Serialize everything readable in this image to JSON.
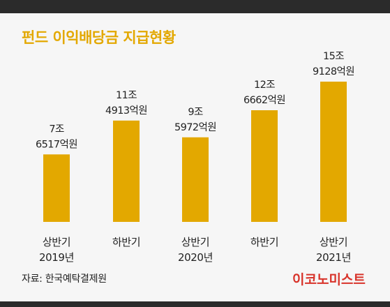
{
  "header": {
    "title": "펀드 이익배당금 지급현황"
  },
  "chart_data": {
    "type": "bar",
    "title": "펀드 이익배당금 지급현황",
    "categories": [
      [
        "상반기",
        "2019년"
      ],
      [
        "하반기"
      ],
      [
        "상반기",
        "2020년"
      ],
      [
        "하반기"
      ],
      [
        "상반기",
        "2021년"
      ]
    ],
    "values": [
      76517,
      114913,
      95972,
      126662,
      159128
    ],
    "value_labels": [
      [
        "7조",
        "6517억원"
      ],
      [
        "11조",
        "4913억원"
      ],
      [
        "9조",
        "5972억원"
      ],
      [
        "12조",
        "6662억원"
      ],
      [
        "15조",
        "9128억원"
      ]
    ],
    "unit": "억원",
    "bar_color": "#e3a800",
    "grid": false,
    "legend": "none"
  },
  "footer": {
    "source": "자료: 한국예탁결제원",
    "brand": "이코노미스트",
    "brand_color": "#d8332a"
  }
}
